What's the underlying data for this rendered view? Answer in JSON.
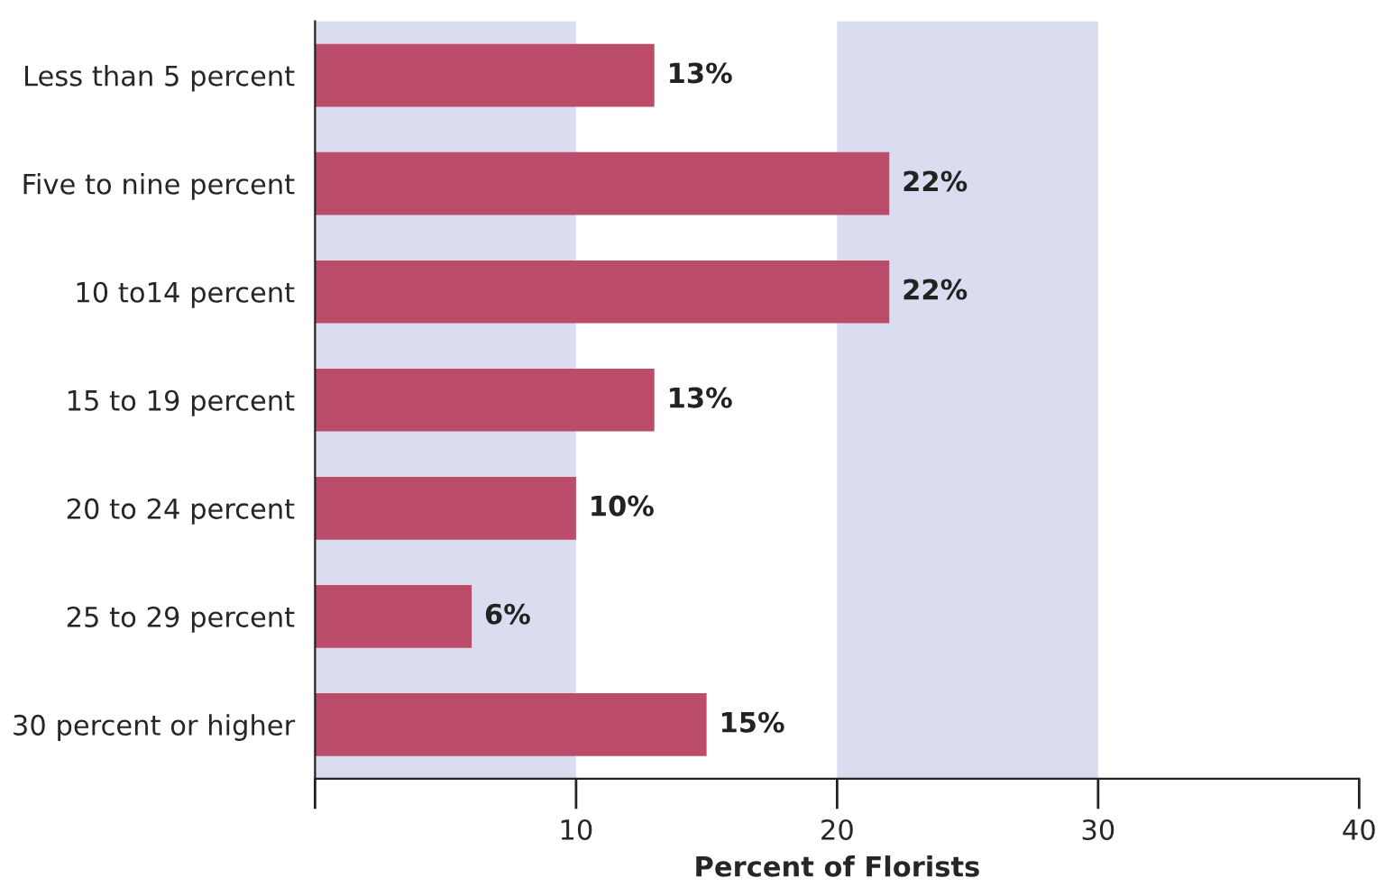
{
  "chart_data": {
    "type": "bar",
    "orientation": "horizontal",
    "xlabel": "Percent of Florists",
    "categories": [
      "Less than 5 percent",
      "Five to nine percent",
      "10 to14 percent",
      "15 to 19 percent",
      "20 to 24 percent",
      "25 to 29 percent",
      "30 percent or higher"
    ],
    "values": [
      13,
      22,
      22,
      13,
      10,
      6,
      15
    ],
    "value_labels": [
      "13%",
      "22%",
      "22%",
      "13%",
      "10%",
      "6%",
      "15%"
    ],
    "color": "#bc4d6a",
    "xlim": [
      0,
      40
    ],
    "xticks": [
      {
        "value": 0,
        "label": null
      },
      10,
      20,
      30,
      40
    ],
    "bands": [
      {
        "axis": "x",
        "from": 0,
        "to": 10,
        "color": "#d9ddef"
      },
      {
        "axis": "x",
        "from": 20,
        "to": 30,
        "color": "#d9ddef"
      }
    ],
    "grid": false,
    "legend": false
  }
}
